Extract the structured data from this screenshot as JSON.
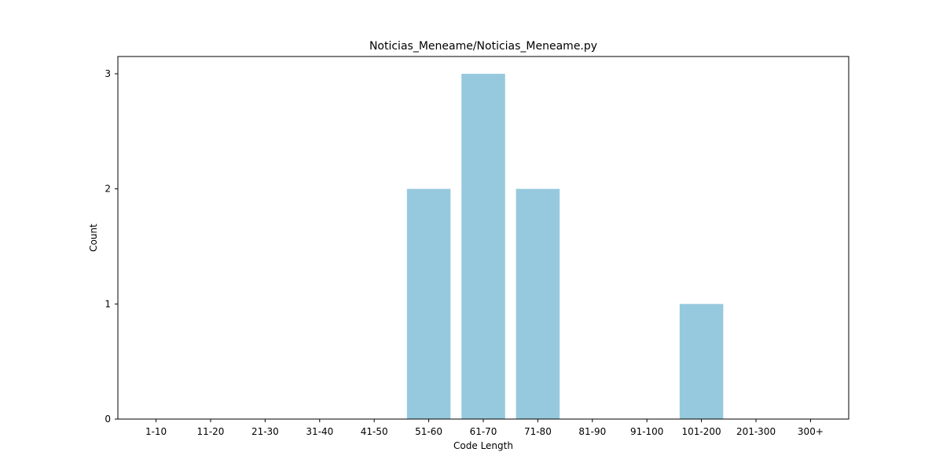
{
  "chart_data": {
    "type": "bar",
    "title": "Noticias_Meneame/Noticias_Meneame.py",
    "xlabel": "Code Length",
    "ylabel": "Count",
    "categories": [
      "1-10",
      "11-20",
      "21-30",
      "31-40",
      "41-50",
      "51-60",
      "61-70",
      "71-80",
      "81-90",
      "91-100",
      "101-200",
      "201-300",
      "300+"
    ],
    "values": [
      0,
      0,
      0,
      0,
      0,
      2,
      3,
      2,
      0,
      0,
      1,
      0,
      0
    ],
    "ylim": [
      0,
      3.15
    ],
    "yticks": [
      0,
      1,
      2,
      3
    ],
    "grid": false,
    "bar_color": "#96c9dd",
    "axis_color": "#000000"
  }
}
